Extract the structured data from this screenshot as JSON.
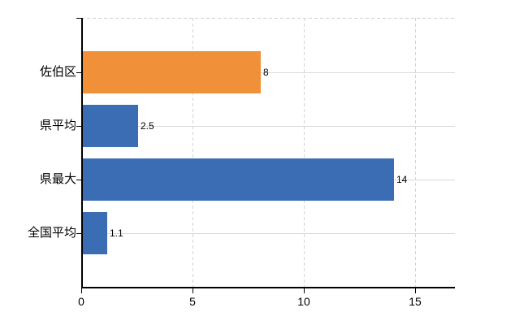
{
  "chart_data": {
    "type": "bar",
    "orientation": "horizontal",
    "title": "",
    "xlabel": "",
    "ylabel": "",
    "categories": [
      "佐伯区",
      "県平均",
      "県最大",
      "全国平均"
    ],
    "values": [
      8,
      2.5,
      14,
      1.1
    ],
    "value_labels": [
      "8",
      "2.5",
      "14",
      "1.1"
    ],
    "bar_colors": [
      "#f0913a",
      "#3a6db3",
      "#3a6db3",
      "#3a6db3"
    ],
    "x_ticks": [
      0,
      5,
      10,
      15
    ],
    "x_tick_labels": [
      "0",
      "5",
      "10",
      "15"
    ],
    "xlim": [
      0,
      16.8
    ],
    "grid": true,
    "legend": false
  },
  "colors": {
    "bar_orange": "#f0913a",
    "bar_blue": "#3a6db3",
    "axis": "#000000",
    "gridline_dashed": "#d4d4d4",
    "gridline_horizontal": "#d7dbd7",
    "text": "#000000",
    "background": "#ffffff"
  }
}
